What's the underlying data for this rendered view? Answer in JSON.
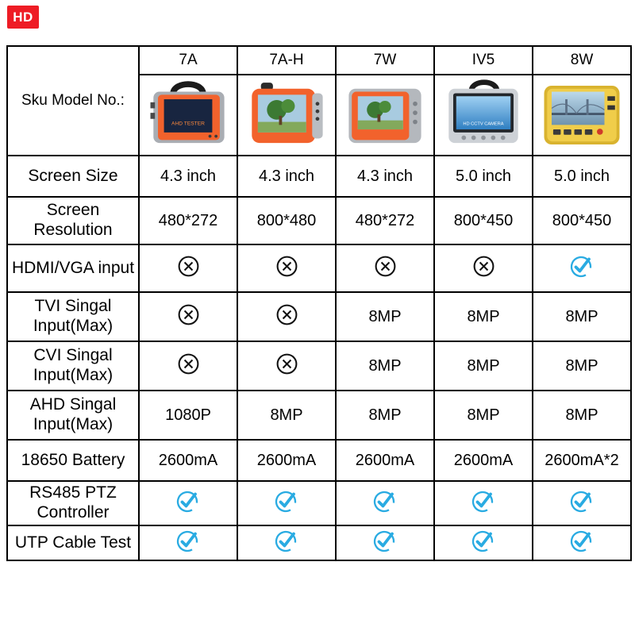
{
  "logo": {
    "text": "HD"
  },
  "colors": {
    "check": "#29abe2",
    "cross": "#111111",
    "logo_bg": "#ee1c25",
    "device_orange": "#f2622c",
    "device_yellow": "#f0cd4a"
  },
  "table": {
    "sku_label": "Sku Model No.:",
    "models": [
      "7A",
      "7A-H",
      "7W",
      "IV5",
      "8W"
    ],
    "device_screen_labels": {
      "7A": "AHD TESTER",
      "IV5": "HD CCTV CAMERA"
    },
    "rows": [
      {
        "label": "Screen Size",
        "values": [
          "4.3 inch",
          "4.3 inch",
          "4.3 inch",
          "5.0 inch",
          "5.0 inch"
        ]
      },
      {
        "label": "Screen Resolution",
        "values": [
          "480*272",
          "800*480",
          "480*272",
          "800*450",
          "800*450"
        ]
      },
      {
        "label": "HDMI/VGA input",
        "values": [
          "@cross",
          "@cross",
          "@cross",
          "@cross",
          "@check"
        ]
      },
      {
        "label": "TVI Singal Input(Max)",
        "values": [
          "@cross",
          "@cross",
          "8MP",
          "8MP",
          "8MP"
        ]
      },
      {
        "label": "CVI Singal Input(Max)",
        "values": [
          "@cross",
          "@cross",
          "8MP",
          "8MP",
          "8MP"
        ]
      },
      {
        "label": "AHD Singal Input(Max)",
        "values": [
          "1080P",
          "8MP",
          "8MP",
          "8MP",
          "8MP"
        ]
      },
      {
        "label": "18650 Battery",
        "values": [
          "2600mA",
          "2600mA",
          "2600mA",
          "2600mA",
          "2600mA*2"
        ]
      },
      {
        "label": "RS485 PTZ Controller",
        "values": [
          "@check",
          "@check",
          "@check",
          "@check",
          "@check"
        ]
      },
      {
        "label": "UTP Cable Test",
        "values": [
          "@check",
          "@check",
          "@check",
          "@check",
          "@check"
        ]
      }
    ]
  },
  "chart_data": {
    "type": "table",
    "title": "CCTV tester model comparison",
    "columns": [
      "Sku Model No.:",
      "7A",
      "7A-H",
      "7W",
      "IV5",
      "8W"
    ],
    "rows": [
      [
        "Screen Size",
        "4.3 inch",
        "4.3 inch",
        "4.3 inch",
        "5.0 inch",
        "5.0 inch"
      ],
      [
        "Screen Resolution",
        "480*272",
        "800*480",
        "480*272",
        "800*450",
        "800*450"
      ],
      [
        "HDMI/VGA input",
        "No",
        "No",
        "No",
        "No",
        "Yes"
      ],
      [
        "TVI Singal Input(Max)",
        "No",
        "No",
        "8MP",
        "8MP",
        "8MP"
      ],
      [
        "CVI Singal Input(Max)",
        "No",
        "No",
        "8MP",
        "8MP",
        "8MP"
      ],
      [
        "AHD Singal Input(Max)",
        "1080P",
        "8MP",
        "8MP",
        "8MP",
        "8MP"
      ],
      [
        "18650 Battery",
        "2600mA",
        "2600mA",
        "2600mA",
        "2600mA",
        "2600mA*2"
      ],
      [
        "RS485 PTZ Controller",
        "Yes",
        "Yes",
        "Yes",
        "Yes",
        "Yes"
      ],
      [
        "UTP Cable Test",
        "Yes",
        "Yes",
        "Yes",
        "Yes",
        "Yes"
      ]
    ],
    "legend": {
      "No": "circled X icon (not supported)",
      "Yes": "blue check icon (supported)"
    }
  }
}
